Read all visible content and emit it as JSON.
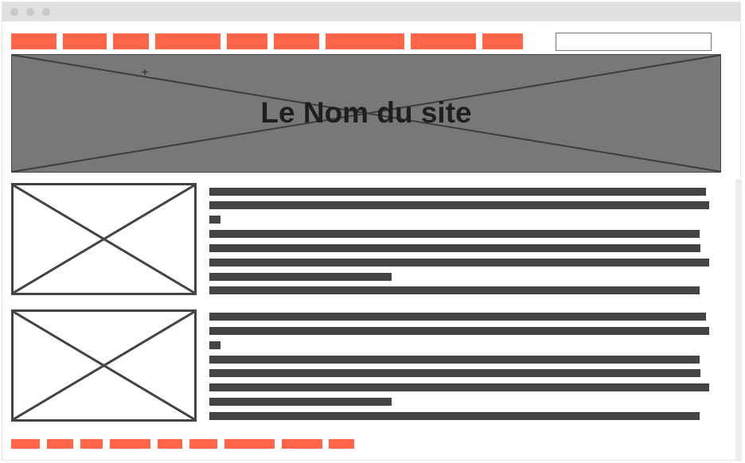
{
  "window": {
    "controls": [
      "close",
      "minimize",
      "maximize"
    ]
  },
  "nav": {
    "items": [
      "item-1",
      "item-2",
      "item-3",
      "item-4",
      "item-5",
      "item-6",
      "item-7",
      "item-8",
      "item-9"
    ]
  },
  "search": {
    "value": "",
    "placeholder": ""
  },
  "hero": {
    "title": "Le Nom du site"
  },
  "articles": [
    {
      "image": "image-placeholder",
      "text_lines": 8
    },
    {
      "image": "image-placeholder",
      "text_lines": 8
    }
  ],
  "footer": {
    "links": [
      "link-1",
      "link-2",
      "link-3",
      "link-4",
      "link-5",
      "link-6",
      "link-7",
      "link-8",
      "link-9"
    ]
  },
  "colors": {
    "accent": "#ff6647",
    "text_placeholder": "#444444",
    "hero_bg": "#787878",
    "titlebar": "#e0e0e0"
  }
}
